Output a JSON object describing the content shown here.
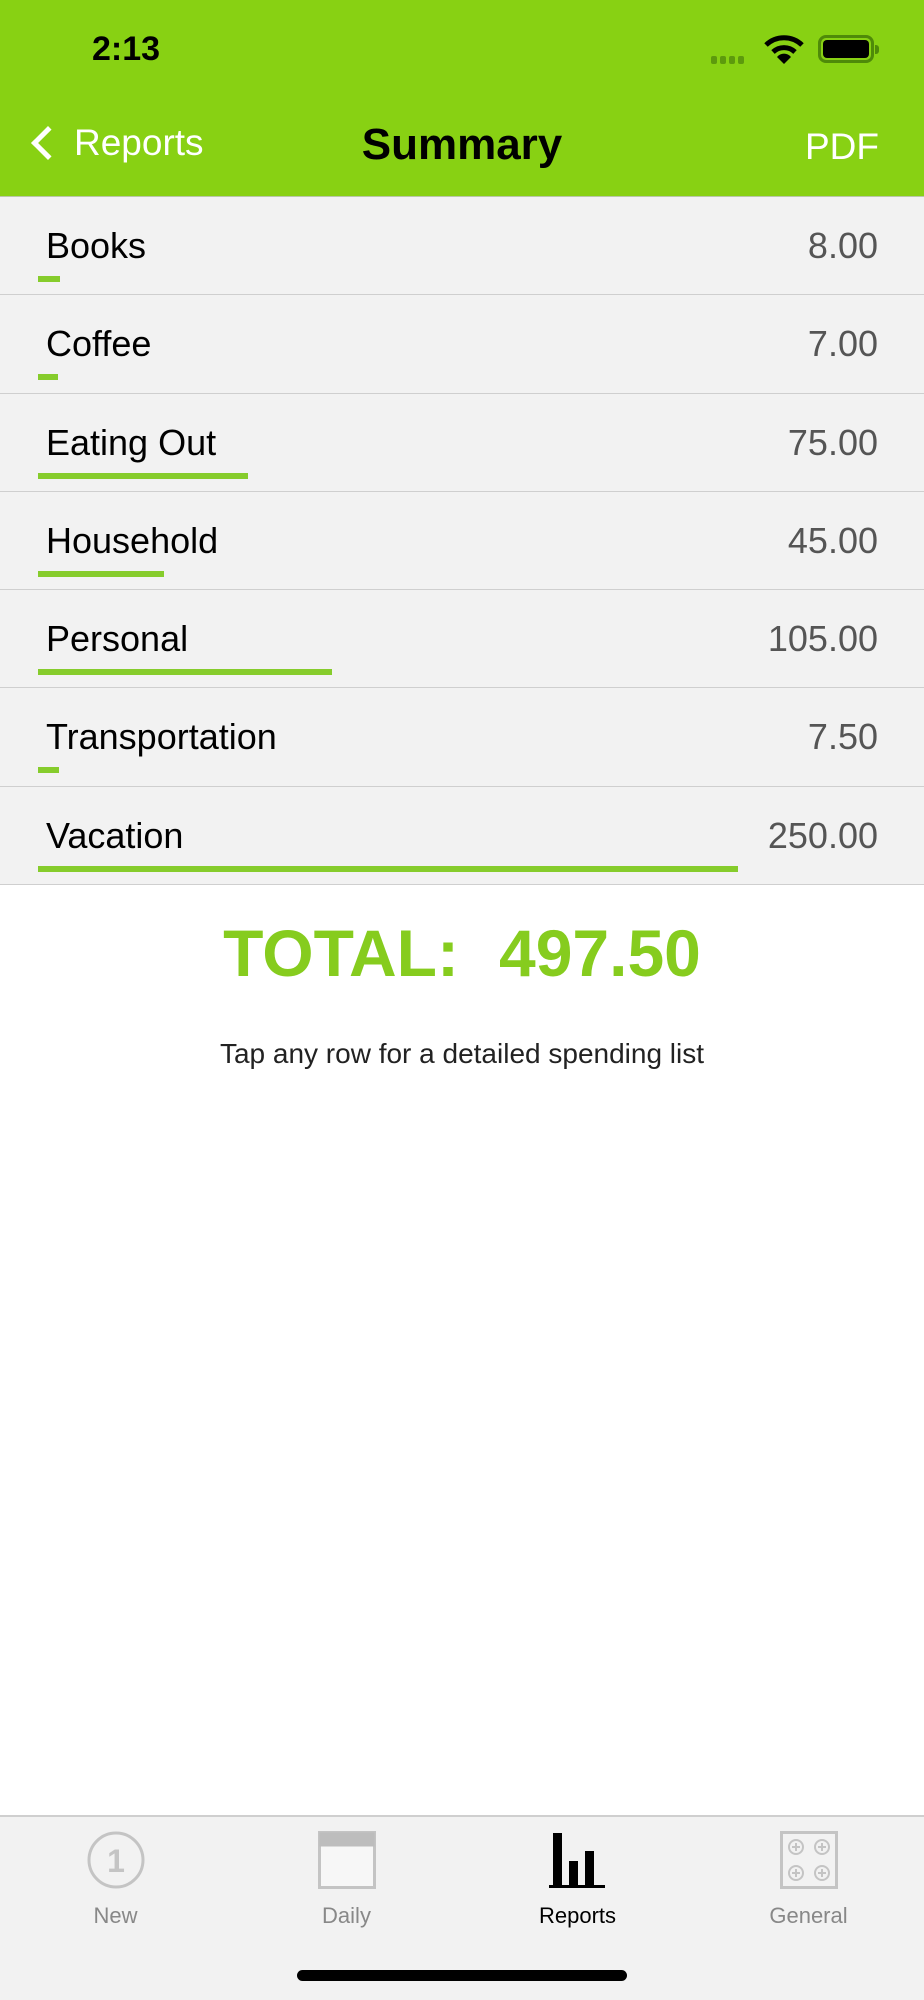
{
  "status_bar": {
    "time": "2:13"
  },
  "nav": {
    "back_label": "Reports",
    "title": "Summary",
    "right_label": "PDF"
  },
  "rows": [
    {
      "label": "Books",
      "value": "8.00",
      "amount": 8
    },
    {
      "label": "Coffee",
      "value": "7.00",
      "amount": 7
    },
    {
      "label": "Eating Out",
      "value": "75.00",
      "amount": 75
    },
    {
      "label": "Household",
      "value": "45.00",
      "amount": 45
    },
    {
      "label": "Personal",
      "value": "105.00",
      "amount": 105
    },
    {
      "label": "Transportation",
      "value": "7.50",
      "amount": 7.5
    },
    {
      "label": "Vacation",
      "value": "250.00",
      "amount": 250
    }
  ],
  "total": {
    "label": "TOTAL:",
    "value": "497.50"
  },
  "hint": "Tap any row for a detailed spending list",
  "tabs": [
    {
      "label": "New",
      "icon": "circle-one-icon"
    },
    {
      "label": "Daily",
      "icon": "calendar-icon"
    },
    {
      "label": "Reports",
      "icon": "bar-chart-icon",
      "active": true
    },
    {
      "label": "General",
      "icon": "settings-grid-icon"
    }
  ],
  "colors": {
    "accent": "#88d113",
    "bar": "#86cc2c",
    "total": "#86cc1e"
  }
}
